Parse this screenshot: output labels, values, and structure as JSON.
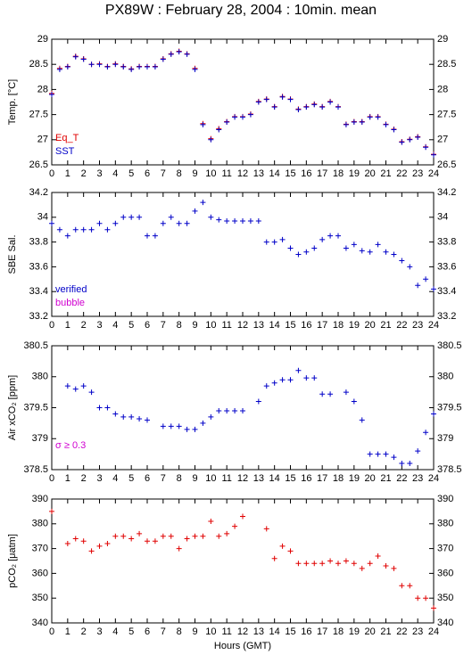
{
  "title": "PX89W : February 28, 2004 : 10min. mean",
  "chart_data": [
    {
      "type": "scatter",
      "ylabel": "Temp. [°C]",
      "x": [
        0,
        0.5,
        1,
        1.5,
        2,
        2.5,
        3,
        3.5,
        4,
        4.5,
        5,
        5.5,
        6,
        6.5,
        7,
        7.5,
        8,
        8.5,
        9,
        9.5,
        10,
        10.5,
        11,
        11.5,
        12,
        12.5,
        13,
        13.5,
        14,
        14.5,
        15,
        15.5,
        16,
        16.5,
        17,
        17.5,
        18,
        18.5,
        19,
        19.5,
        20,
        20.5,
        21,
        21.5,
        22,
        22.5,
        23,
        23.5,
        24
      ],
      "series": [
        {
          "name": "Eq_T",
          "color": "#e00000",
          "values": [
            27.92,
            28.42,
            28.46,
            28.66,
            28.61,
            28.5,
            28.51,
            28.46,
            28.51,
            28.46,
            28.41,
            28.46,
            28.46,
            28.46,
            28.61,
            28.71,
            28.76,
            28.71,
            28.42,
            27.32,
            27.02,
            27.22,
            27.36,
            27.46,
            27.46,
            27.51,
            27.76,
            27.81,
            27.66,
            27.86,
            27.81,
            27.61,
            27.66,
            27.71,
            27.66,
            27.76,
            27.66,
            27.31,
            27.36,
            27.36,
            27.46,
            27.46,
            27.31,
            27.21,
            26.96,
            27.01,
            27.06,
            26.86,
            26.71
          ]
        },
        {
          "name": "SST",
          "color": "#0000c8",
          "values": [
            27.9,
            28.4,
            28.45,
            28.65,
            28.6,
            28.5,
            28.5,
            28.45,
            28.5,
            28.45,
            28.4,
            28.45,
            28.45,
            28.45,
            28.6,
            28.7,
            28.75,
            28.7,
            28.4,
            27.3,
            27.0,
            27.2,
            27.35,
            27.45,
            27.45,
            27.5,
            27.75,
            27.8,
            27.65,
            27.85,
            27.8,
            27.6,
            27.65,
            27.7,
            27.65,
            27.75,
            27.65,
            27.3,
            27.35,
            27.35,
            27.45,
            27.45,
            27.3,
            27.2,
            26.95,
            27.0,
            27.05,
            26.85,
            26.7
          ]
        }
      ],
      "xlim": [
        0,
        24
      ],
      "xticks": [
        0,
        1,
        2,
        3,
        4,
        5,
        6,
        7,
        8,
        9,
        10,
        11,
        12,
        13,
        14,
        15,
        16,
        17,
        18,
        19,
        20,
        21,
        22,
        23,
        24
      ],
      "ylim": [
        26.5,
        29
      ],
      "yticks": [
        26.5,
        27,
        27.5,
        28,
        28.5,
        29
      ]
    },
    {
      "type": "scatter",
      "ylabel": "SBE Sal.",
      "x": [
        0,
        0.5,
        1,
        1.5,
        2,
        2.5,
        3,
        3.5,
        4,
        4.5,
        5,
        5.5,
        6,
        6.5,
        7,
        7.5,
        8,
        8.5,
        9,
        9.5,
        10,
        10.5,
        11,
        11.5,
        12,
        12.5,
        13,
        13.5,
        14,
        14.5,
        15,
        15.5,
        16,
        16.5,
        17,
        17.5,
        18,
        18.5,
        19,
        19.5,
        20,
        20.5,
        21,
        21.5,
        22,
        22.5,
        23,
        23.5,
        24
      ],
      "series": [
        {
          "name": "verified",
          "color": "#0000c8",
          "values": [
            33.95,
            33.9,
            33.85,
            33.9,
            33.9,
            33.9,
            33.95,
            33.9,
            33.95,
            34.0,
            34.0,
            34.0,
            33.85,
            33.85,
            33.95,
            34.0,
            33.95,
            33.95,
            34.05,
            34.12,
            34.0,
            33.98,
            33.97,
            33.97,
            33.97,
            33.97,
            33.97,
            33.8,
            33.8,
            33.82,
            33.75,
            33.7,
            33.72,
            33.75,
            33.82,
            33.85,
            33.85,
            33.75,
            33.78,
            33.73,
            33.72,
            33.78,
            33.72,
            33.7,
            33.65,
            33.6,
            33.45,
            33.5,
            33.42
          ]
        },
        {
          "name": "bubble",
          "color": "#d000d0",
          "values": [
            null,
            null,
            null,
            null,
            null,
            null,
            null,
            null,
            null,
            null,
            null,
            null,
            null,
            null,
            null,
            null,
            null,
            null,
            null,
            null,
            null,
            null,
            null,
            null,
            null,
            null,
            null,
            null,
            null,
            null,
            null,
            null,
            null,
            null,
            null,
            null,
            null,
            null,
            null,
            null,
            null,
            null,
            null,
            null,
            null,
            null,
            null,
            null,
            null
          ]
        }
      ],
      "xlim": [
        0,
        24
      ],
      "xticks": [
        0,
        1,
        2,
        3,
        4,
        5,
        6,
        7,
        8,
        9,
        10,
        11,
        12,
        13,
        14,
        15,
        16,
        17,
        18,
        19,
        20,
        21,
        22,
        23,
        24
      ],
      "ylim": [
        33.2,
        34.2
      ],
      "yticks": [
        33.2,
        33.4,
        33.6,
        33.8,
        34,
        34.2
      ]
    },
    {
      "type": "scatter",
      "ylabel": "Air xCO₂ [ppm]",
      "annotation": "σ ≥ 0.3",
      "annotation_color": "#d000d0",
      "x": [
        0,
        0.5,
        1,
        1.5,
        2,
        2.5,
        3,
        3.5,
        4,
        4.5,
        5,
        5.5,
        6,
        6.5,
        7,
        7.5,
        8,
        8.5,
        9,
        9.5,
        10,
        10.5,
        11,
        11.5,
        12,
        12.5,
        13,
        13.5,
        14,
        14.5,
        15,
        15.5,
        16,
        16.5,
        17,
        17.5,
        18,
        18.5,
        19,
        19.5,
        20,
        20.5,
        21,
        21.5,
        22,
        22.5,
        23,
        23.5,
        24
      ],
      "series": [
        {
          "name": "Air xCO2",
          "color": "#0000c8",
          "values": [
            null,
            null,
            379.85,
            379.8,
            379.85,
            379.75,
            379.5,
            379.5,
            379.4,
            379.35,
            379.35,
            379.32,
            379.3,
            null,
            379.2,
            379.2,
            379.2,
            379.15,
            379.15,
            379.25,
            379.35,
            379.45,
            379.45,
            379.45,
            379.45,
            null,
            379.6,
            379.85,
            379.9,
            379.95,
            379.95,
            380.1,
            379.98,
            379.98,
            379.72,
            379.72,
            null,
            379.75,
            379.6,
            379.3,
            378.75,
            378.75,
            378.75,
            378.7,
            378.6,
            378.6,
            378.8,
            379.1,
            379.4
          ]
        }
      ],
      "xlim": [
        0,
        24
      ],
      "xticks": [
        0,
        1,
        2,
        3,
        4,
        5,
        6,
        7,
        8,
        9,
        10,
        11,
        12,
        13,
        14,
        15,
        16,
        17,
        18,
        19,
        20,
        21,
        22,
        23,
        24
      ],
      "ylim": [
        378.5,
        380.5
      ],
      "yticks": [
        378.5,
        379,
        379.5,
        380,
        380.5
      ]
    },
    {
      "type": "scatter",
      "ylabel": "pCO₂ [μatm]",
      "xlabel": "Hours (GMT)",
      "x": [
        0,
        0.5,
        1,
        1.5,
        2,
        2.5,
        3,
        3.5,
        4,
        4.5,
        5,
        5.5,
        6,
        6.5,
        7,
        7.5,
        8,
        8.5,
        9,
        9.5,
        10,
        10.5,
        11,
        11.5,
        12,
        12.5,
        13,
        13.5,
        14,
        14.5,
        15,
        15.5,
        16,
        16.5,
        17,
        17.5,
        18,
        18.5,
        19,
        19.5,
        20,
        20.5,
        21,
        21.5,
        22,
        22.5,
        23,
        23.5,
        24
      ],
      "series": [
        {
          "name": "pCO2",
          "color": "#e00000",
          "values": [
            385,
            null,
            372,
            374,
            373,
            369,
            371,
            372,
            375,
            375,
            374,
            376,
            373,
            373,
            375,
            375,
            370,
            374,
            375,
            375,
            381,
            375,
            376,
            379,
            383,
            null,
            null,
            378,
            366,
            371,
            369,
            364,
            364,
            364,
            364,
            365,
            364,
            365,
            364,
            362,
            364,
            367,
            363,
            362,
            355,
            355,
            350,
            350,
            346
          ]
        }
      ],
      "xlim": [
        0,
        24
      ],
      "xticks": [
        0,
        1,
        2,
        3,
        4,
        5,
        6,
        7,
        8,
        9,
        10,
        11,
        12,
        13,
        14,
        15,
        16,
        17,
        18,
        19,
        20,
        21,
        22,
        23,
        24
      ],
      "ylim": [
        340,
        390
      ],
      "yticks": [
        340,
        350,
        360,
        370,
        380,
        390
      ]
    }
  ]
}
